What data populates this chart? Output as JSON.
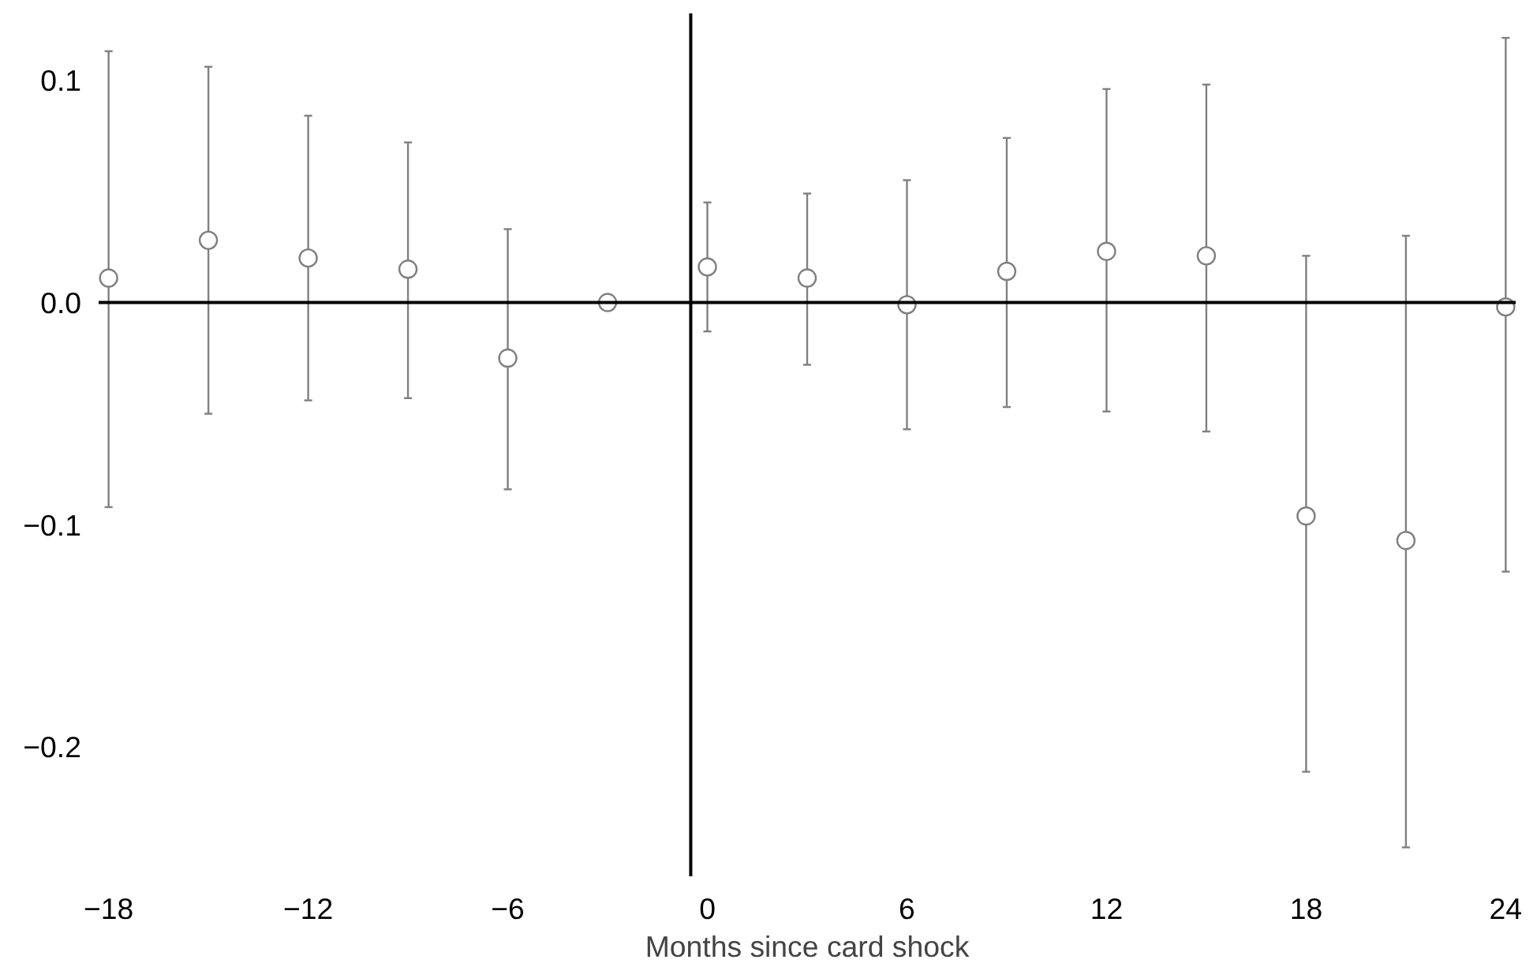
{
  "chart_data": {
    "type": "scatter",
    "xlabel": "Months since card shock",
    "x": [
      -18,
      -15,
      -12,
      -9,
      -6,
      -3,
      0,
      3,
      6,
      9,
      12,
      15,
      18,
      21,
      24
    ],
    "values": [
      0.011,
      0.028,
      0.02,
      0.015,
      -0.025,
      0,
      0.016,
      0.011,
      -0.001,
      0.014,
      0.023,
      0.021,
      -0.096,
      -0.107,
      -0.002
    ],
    "errors": [
      [
        -0.092,
        0.113
      ],
      [
        -0.05,
        0.106
      ],
      [
        -0.044,
        0.084
      ],
      [
        -0.043,
        0.072
      ],
      [
        -0.084,
        0.033
      ],
      null,
      [
        -0.013,
        0.045
      ],
      [
        -0.028,
        0.049
      ],
      [
        -0.057,
        0.055
      ],
      [
        -0.047,
        0.074
      ],
      [
        -0.049,
        0.096
      ],
      [
        -0.058,
        0.098
      ],
      [
        -0.211,
        0.021
      ],
      [
        -0.245,
        0.03
      ],
      [
        -0.121,
        0.119
      ]
    ],
    "color": "#808080",
    "marker": "circle",
    "xlim": [
      -18.3,
      24.3
    ],
    "ylim": [
      -0.258,
      0.13
    ],
    "xticks": [
      {
        "value": -18,
        "label": "−18"
      },
      {
        "value": -12,
        "label": "−12"
      },
      {
        "value": -6,
        "label": "−6"
      },
      0,
      6,
      12,
      18,
      24
    ],
    "yticks": [
      {
        "value": -0.2,
        "label": "−0.2"
      },
      {
        "value": -0.1,
        "label": "−0.1"
      },
      {
        "value": 0,
        "label": "0.0"
      },
      0.1
    ],
    "ref_lines": [
      {
        "axis": "y",
        "value": 0,
        "color": "#000000"
      },
      {
        "axis": "x",
        "value": -0.5,
        "color": "#000000"
      }
    ],
    "grid": false
  }
}
